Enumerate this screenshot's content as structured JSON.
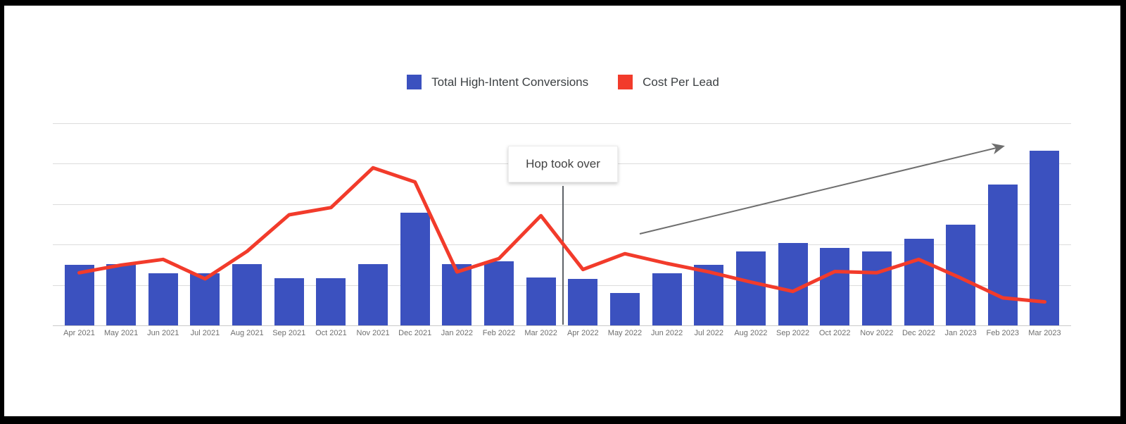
{
  "legend": {
    "items": [
      {
        "label": "Total High-Intent Conversions",
        "color": "#3b51bf"
      },
      {
        "label": "Cost Per Lead",
        "color": "#f23b2b"
      }
    ]
  },
  "annotations": {
    "takeover": {
      "text": "Hop took over",
      "marker_position": "between Mar 2022 and Apr 2022"
    },
    "trend_arrow": {
      "description": "gray upward trend arrow over Jun 2022 to Feb 2023",
      "color": "#6e6e6e"
    }
  },
  "chart_data": {
    "type": "bar",
    "subtype": "combo-bar-line",
    "title": "",
    "xlabel": "",
    "ylabel": "",
    "y_axis_note": "no y-axis tick labels shown; values estimated in gridline units",
    "ylim": [
      0,
      5
    ],
    "grid": true,
    "legend_position": "top-center",
    "categories": [
      "Apr 2021",
      "May 2021",
      "Jun 2021",
      "Jul 2021",
      "Aug 2021",
      "Sep 2021",
      "Oct 2021",
      "Nov 2021",
      "Dec 2021",
      "Jan 2022",
      "Feb 2022",
      "Mar 2022",
      "Apr 2022",
      "May 2022",
      "Jun 2022",
      "Jul 2022",
      "Aug 2022",
      "Sep 2022",
      "Oct 2022",
      "Nov 2022",
      "Dec 2022",
      "Jan 2023",
      "Feb 2023",
      "Mar 2023"
    ],
    "series": [
      {
        "name": "Total High-Intent Conversions",
        "type": "bar",
        "color": "#3b51bf",
        "values": [
          1.5,
          1.52,
          1.29,
          1.28,
          1.51,
          1.16,
          1.16,
          1.51,
          2.79,
          1.52,
          1.59,
          1.19,
          1.15,
          0.8,
          1.29,
          1.5,
          1.82,
          2.03,
          1.91,
          1.82,
          2.14,
          2.49,
          3.47,
          4.32
        ]
      },
      {
        "name": "Cost Per Lead",
        "type": "line",
        "color": "#f23b2b",
        "values": [
          1.3,
          1.49,
          1.63,
          1.15,
          1.83,
          2.73,
          2.91,
          3.89,
          3.54,
          1.32,
          1.65,
          2.71,
          1.38,
          1.77,
          1.53,
          1.32,
          1.07,
          0.84,
          1.33,
          1.3,
          1.63,
          1.17,
          0.68,
          0.58
        ]
      }
    ],
    "colors": {
      "bar_blue": "#3b51bf",
      "line_red": "#f23b2b",
      "gridline": "#dcdcdc",
      "axis_line": "#c9c9c9",
      "x_label_text": "#6f6f6f",
      "legend_text": "#3c4043",
      "annotation_text": "#424242",
      "annotation_line": "#5f6368",
      "arrow": "#6e6e6e",
      "frame": "#000000"
    }
  }
}
